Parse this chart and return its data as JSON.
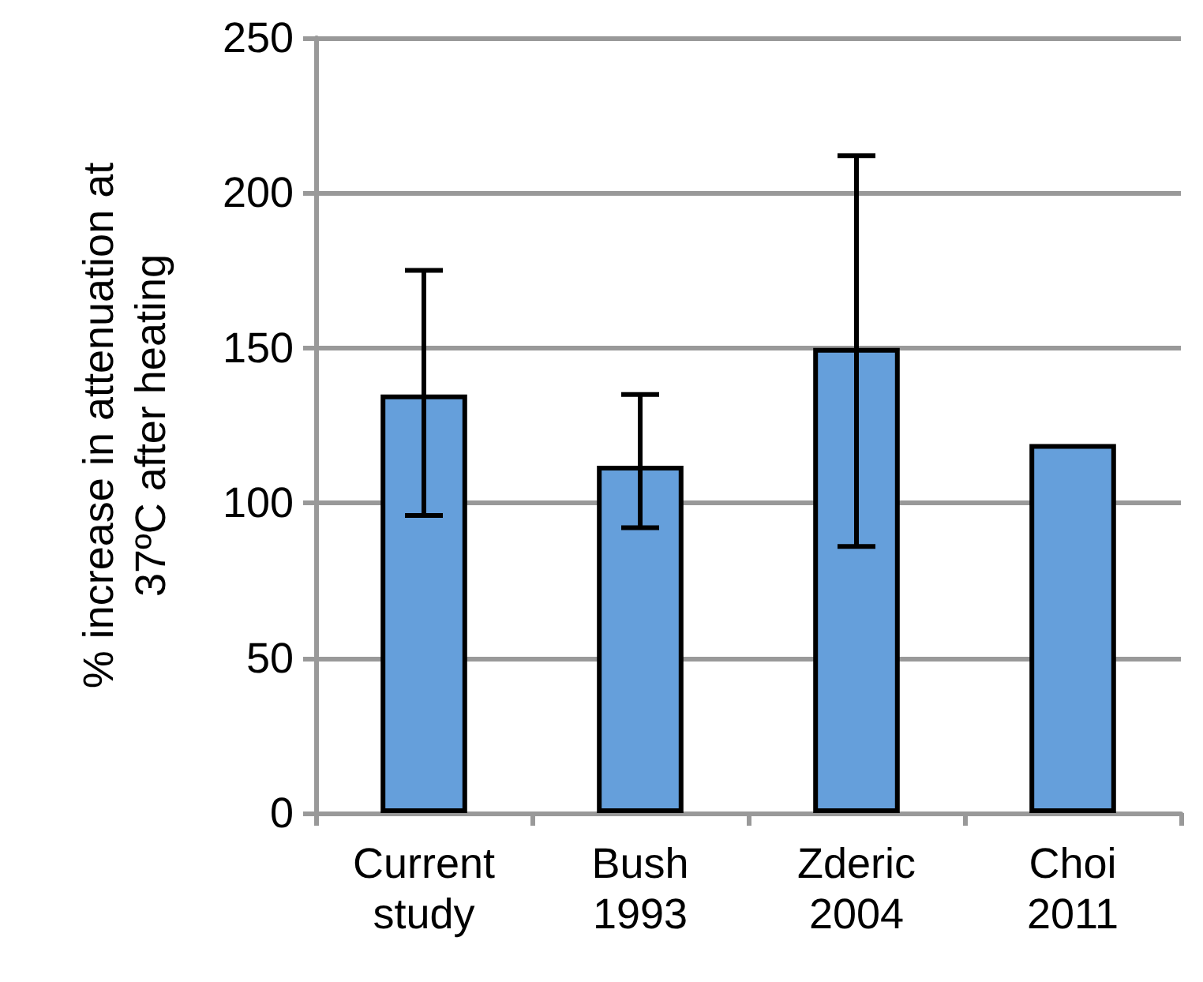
{
  "chart_data": {
    "type": "bar",
    "ylabel": "% increase in attenuation at\n37ºC after heating",
    "categories": [
      "Current\nstudy",
      "Bush\n1993",
      "Zderic\n2004",
      "Choi\n2011"
    ],
    "values": [
      135,
      112,
      150,
      119
    ],
    "errors": [
      [
        96,
        175
      ],
      [
        92,
        135
      ],
      [
        86,
        212
      ],
      null
    ],
    "color": "#659fdb",
    "ylim": [
      0,
      250
    ],
    "yticks": [
      0,
      50,
      100,
      150,
      200,
      250
    ],
    "grid": "y"
  }
}
